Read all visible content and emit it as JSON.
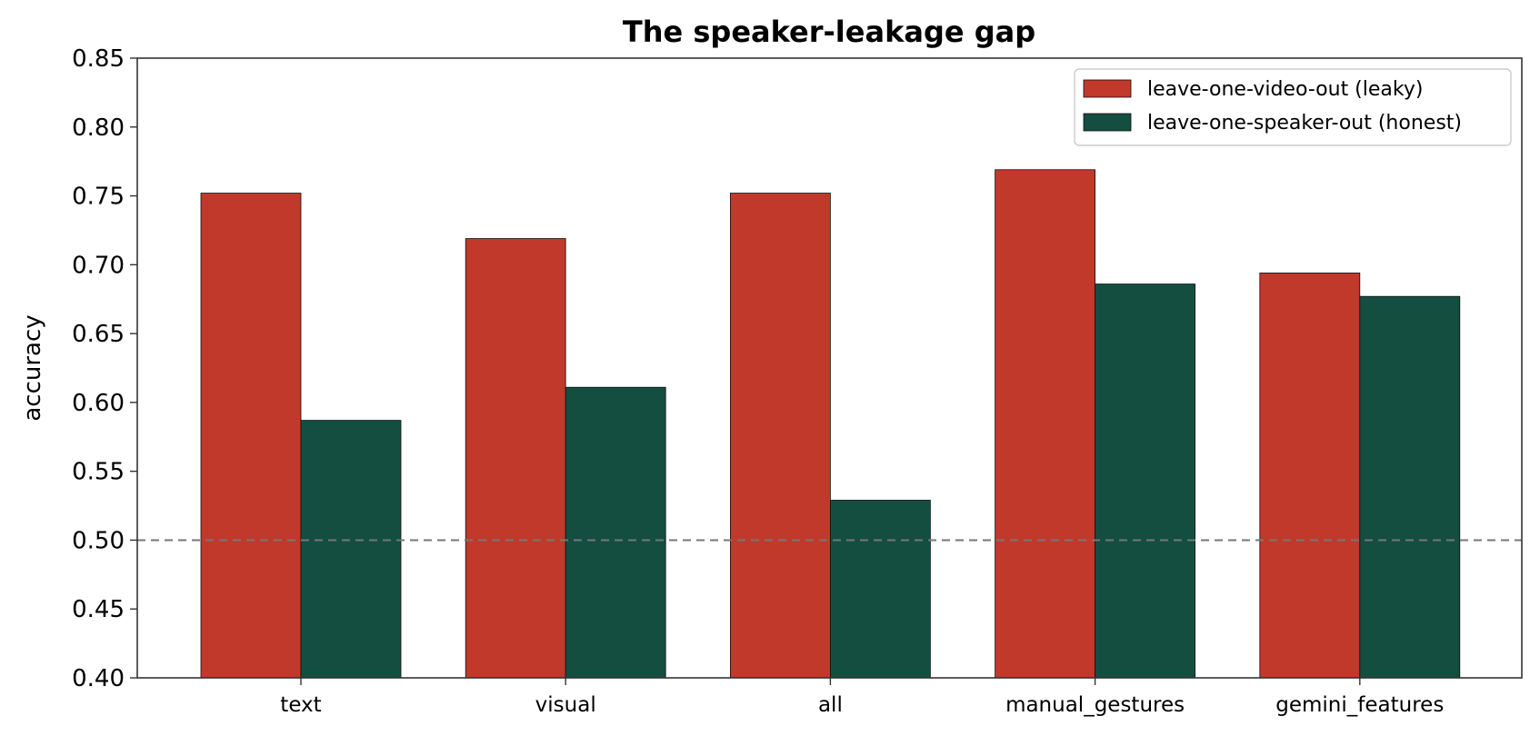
{
  "chart_data": {
    "type": "bar",
    "title": "The speaker-leakage gap",
    "xlabel": "",
    "ylabel": "accuracy",
    "ylim": [
      0.4,
      0.85
    ],
    "yticks": [
      0.4,
      0.45,
      0.5,
      0.55,
      0.6,
      0.65,
      0.7,
      0.75,
      0.8,
      0.85
    ],
    "categories": [
      "text",
      "visual",
      "all",
      "manual_gestures",
      "gemini_features"
    ],
    "series": [
      {
        "name": "leave-one-video-out (leaky)",
        "color": "#c0392b",
        "values": [
          0.752,
          0.719,
          0.752,
          0.769,
          0.694
        ]
      },
      {
        "name": "leave-one-speaker-out (honest)",
        "color": "#134e40",
        "values": [
          0.587,
          0.611,
          0.529,
          0.686,
          0.677
        ]
      }
    ],
    "reference_line": {
      "value": 0.5,
      "style": "dashed",
      "color": "#777777"
    },
    "legend_position": "top-right",
    "grid": false
  }
}
